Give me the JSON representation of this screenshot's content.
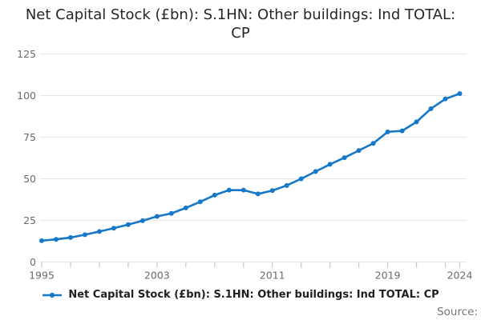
{
  "title": "Net Capital Stock (£bn): S.1HN: Other buildings: Ind TOTAL: CP",
  "source_label": "Source:",
  "legend": {
    "label": "Net Capital Stock (£bn): S.1HN: Other buildings: Ind TOTAL: CP",
    "marker": "line-dot-icon"
  },
  "colors": {
    "series": "#1578c8",
    "grid": "#e6e6e6",
    "tick": "#bfc9d6",
    "axis_label": "#6b6b6b",
    "title_text": "#262626",
    "legend_text": "#1f1f1f",
    "source_text": "#757575",
    "background": "#ffffff"
  },
  "chart_data": {
    "type": "line",
    "title": "Net Capital Stock (£bn): S.1HN: Other buildings: Ind TOTAL: CP",
    "xlabel": "",
    "ylabel": "",
    "ylim": [
      0,
      125
    ],
    "yticks": [
      0,
      25,
      50,
      75,
      100,
      125
    ],
    "xticks_minor": [
      1995,
      1997,
      1999,
      2001,
      2003,
      2005,
      2007,
      2009,
      2011,
      2013,
      2015,
      2017,
      2019,
      2021,
      2023,
      2024
    ],
    "xtick_labels": [
      "1995",
      "2003",
      "2011",
      "2019",
      "2024"
    ],
    "xtick_label_years": [
      1995,
      2003,
      2011,
      2019,
      2024
    ],
    "grid": true,
    "legend_position": "bottom",
    "x": [
      1995,
      1996,
      1997,
      1998,
      1999,
      2000,
      2001,
      2002,
      2003,
      2004,
      2005,
      2006,
      2007,
      2008,
      2009,
      2010,
      2011,
      2012,
      2013,
      2014,
      2015,
      2016,
      2017,
      2018,
      2019,
      2020,
      2021,
      2022,
      2023,
      2024
    ],
    "series": [
      {
        "name": "Net Capital Stock (£bn): S.1HN: Other buildings: Ind TOTAL: CP",
        "values": [
          12.8,
          13.6,
          14.7,
          16.4,
          18.3,
          20.3,
          22.5,
          24.8,
          27.4,
          29.2,
          32.5,
          36.2,
          40.2,
          43.2,
          43.2,
          40.9,
          42.9,
          46.0,
          50.0,
          54.4,
          58.7,
          62.7,
          67.0,
          71.3,
          78.2,
          78.8,
          84.2,
          92.1,
          98.0,
          101.2
        ]
      }
    ]
  }
}
